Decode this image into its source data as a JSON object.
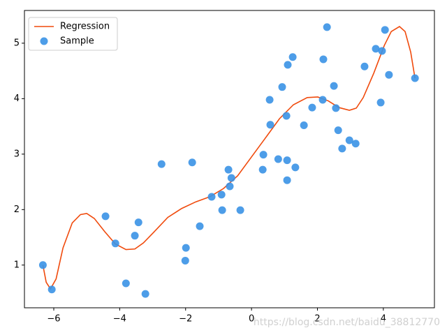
{
  "chart_data": {
    "type": "scatter",
    "xlim": [
      -6.89,
      5.55
    ],
    "ylim": [
      0.23,
      5.59
    ],
    "xticks": [
      {
        "value": -6,
        "label": "−6"
      },
      {
        "value": -4,
        "label": "−4"
      },
      {
        "value": -2,
        "label": "−2"
      },
      0,
      2,
      4
    ],
    "yticks": [
      1,
      2,
      3,
      4,
      5
    ],
    "grid": false,
    "legend": "upper left",
    "watermark": "https://blog.csdn.net/baidu_38812770",
    "series": [
      {
        "name": "Regression",
        "type": "line",
        "color": "#f04a0c",
        "x": [
          -6.33,
          -6.23,
          -6.1,
          -5.93,
          -5.72,
          -5.44,
          -5.19,
          -5.0,
          -4.77,
          -4.45,
          -4.13,
          -3.81,
          -3.54,
          -3.28,
          -2.97,
          -2.54,
          -2.12,
          -1.69,
          -1.27,
          -0.85,
          -0.42,
          0,
          0.42,
          0.85,
          1.27,
          1.69,
          2.01,
          2.33,
          2.65,
          2.97,
          3.18,
          3.39,
          3.71,
          4.03,
          4.24,
          4.49,
          4.66,
          4.83,
          4.96
        ],
        "values": [
          1.0,
          0.69,
          0.57,
          0.75,
          1.31,
          1.76,
          1.91,
          1.93,
          1.84,
          1.6,
          1.38,
          1.28,
          1.29,
          1.4,
          1.59,
          1.86,
          2.02,
          2.14,
          2.23,
          2.38,
          2.61,
          2.95,
          3.29,
          3.64,
          3.89,
          4.02,
          4.03,
          3.96,
          3.84,
          3.79,
          3.83,
          4.02,
          4.46,
          4.96,
          5.21,
          5.3,
          5.21,
          4.84,
          4.37
        ]
      },
      {
        "name": "Sample",
        "type": "scatter",
        "color": "#3a92e6",
        "x": [
          -6.33,
          -6.06,
          -4.43,
          -4.13,
          -3.81,
          -3.54,
          -3.43,
          -3.22,
          -2.73,
          -1.99,
          -2.01,
          -1.8,
          -1.57,
          -1.21,
          -0.91,
          -0.89,
          -0.7,
          -0.61,
          -0.66,
          -0.34,
          0.36,
          0.34,
          0.55,
          0.57,
          0.81,
          0.93,
          1.06,
          1.08,
          1.08,
          1.1,
          1.25,
          1.33,
          1.59,
          1.84,
          2.16,
          2.18,
          2.29,
          2.5,
          2.56,
          2.63,
          2.75,
          2.97,
          3.16,
          3.43,
          3.77,
          3.96,
          3.92,
          4.05,
          4.17,
          4.96
        ],
        "values": [
          1.0,
          0.56,
          1.88,
          1.39,
          0.67,
          1.53,
          1.77,
          0.48,
          2.82,
          1.31,
          1.08,
          2.85,
          1.7,
          2.23,
          2.27,
          1.99,
          2.72,
          2.57,
          2.42,
          1.99,
          2.99,
          2.72,
          3.98,
          3.53,
          2.91,
          4.21,
          3.69,
          2.89,
          2.53,
          4.61,
          4.75,
          2.76,
          3.52,
          3.84,
          3.98,
          4.71,
          5.29,
          4.23,
          3.83,
          3.43,
          3.1,
          3.25,
          3.19,
          4.58,
          4.9,
          4.86,
          3.93,
          5.24,
          4.43,
          4.37
        ]
      }
    ]
  }
}
